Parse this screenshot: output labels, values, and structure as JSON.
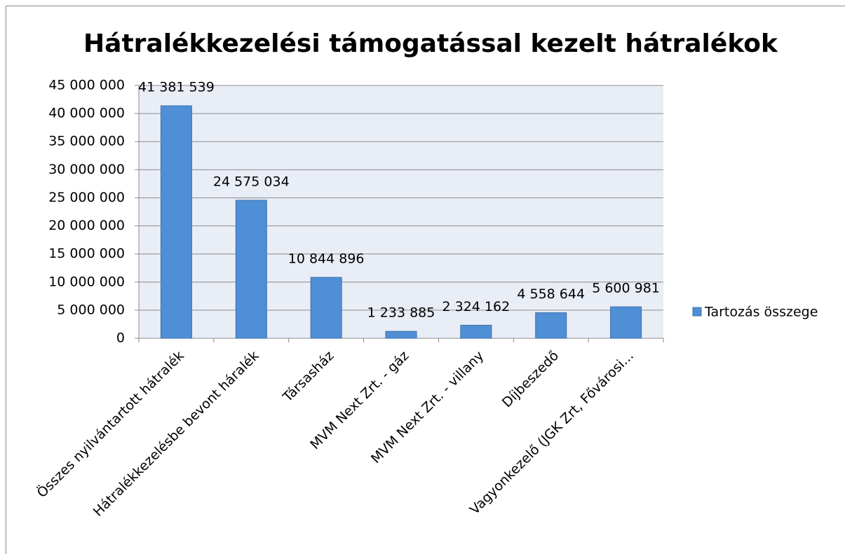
{
  "chart_data": {
    "type": "bar",
    "title": "Hátralékkezelési támogatással kezelt hátralékok",
    "categories": [
      "Összes nyilvántartott hátralék",
      "Hátralékkezelésbe bevont háralék",
      "Társasház",
      "MVM Next Zrt. - gáz",
      "MVM Next Zrt. - villany",
      "Díjbeszedő",
      "Vagyonkezelő (JGK Zrt, Fővárosi..."
    ],
    "series": [
      {
        "name": "Tartozás összege",
        "color": "#4f8fd6",
        "values": [
          41381539,
          24575034,
          10844896,
          1233885,
          2324162,
          4558644,
          5600981
        ],
        "value_labels": [
          "41 381 539",
          "24 575 034",
          "10 844 896",
          "1 233 885",
          "2 324 162",
          "4 558 644",
          "5 600 981"
        ]
      }
    ],
    "ylim": [
      0,
      45000000
    ],
    "yticks": [
      0,
      {
        "value": 5000000,
        "label": "5 000 000"
      },
      {
        "value": 10000000,
        "label": "10 000 000"
      },
      {
        "value": 15000000,
        "label": "15 000 000"
      },
      {
        "value": 20000000,
        "label": "20 000 000"
      },
      {
        "value": 25000000,
        "label": "25 000 000"
      },
      {
        "value": 30000000,
        "label": "30 000 000"
      },
      {
        "value": 35000000,
        "label": "35 000 000"
      },
      {
        "value": 40000000,
        "label": "40 000 000"
      },
      {
        "value": 45000000,
        "label": "45 000 000"
      }
    ],
    "grid": true,
    "legend": "right"
  }
}
